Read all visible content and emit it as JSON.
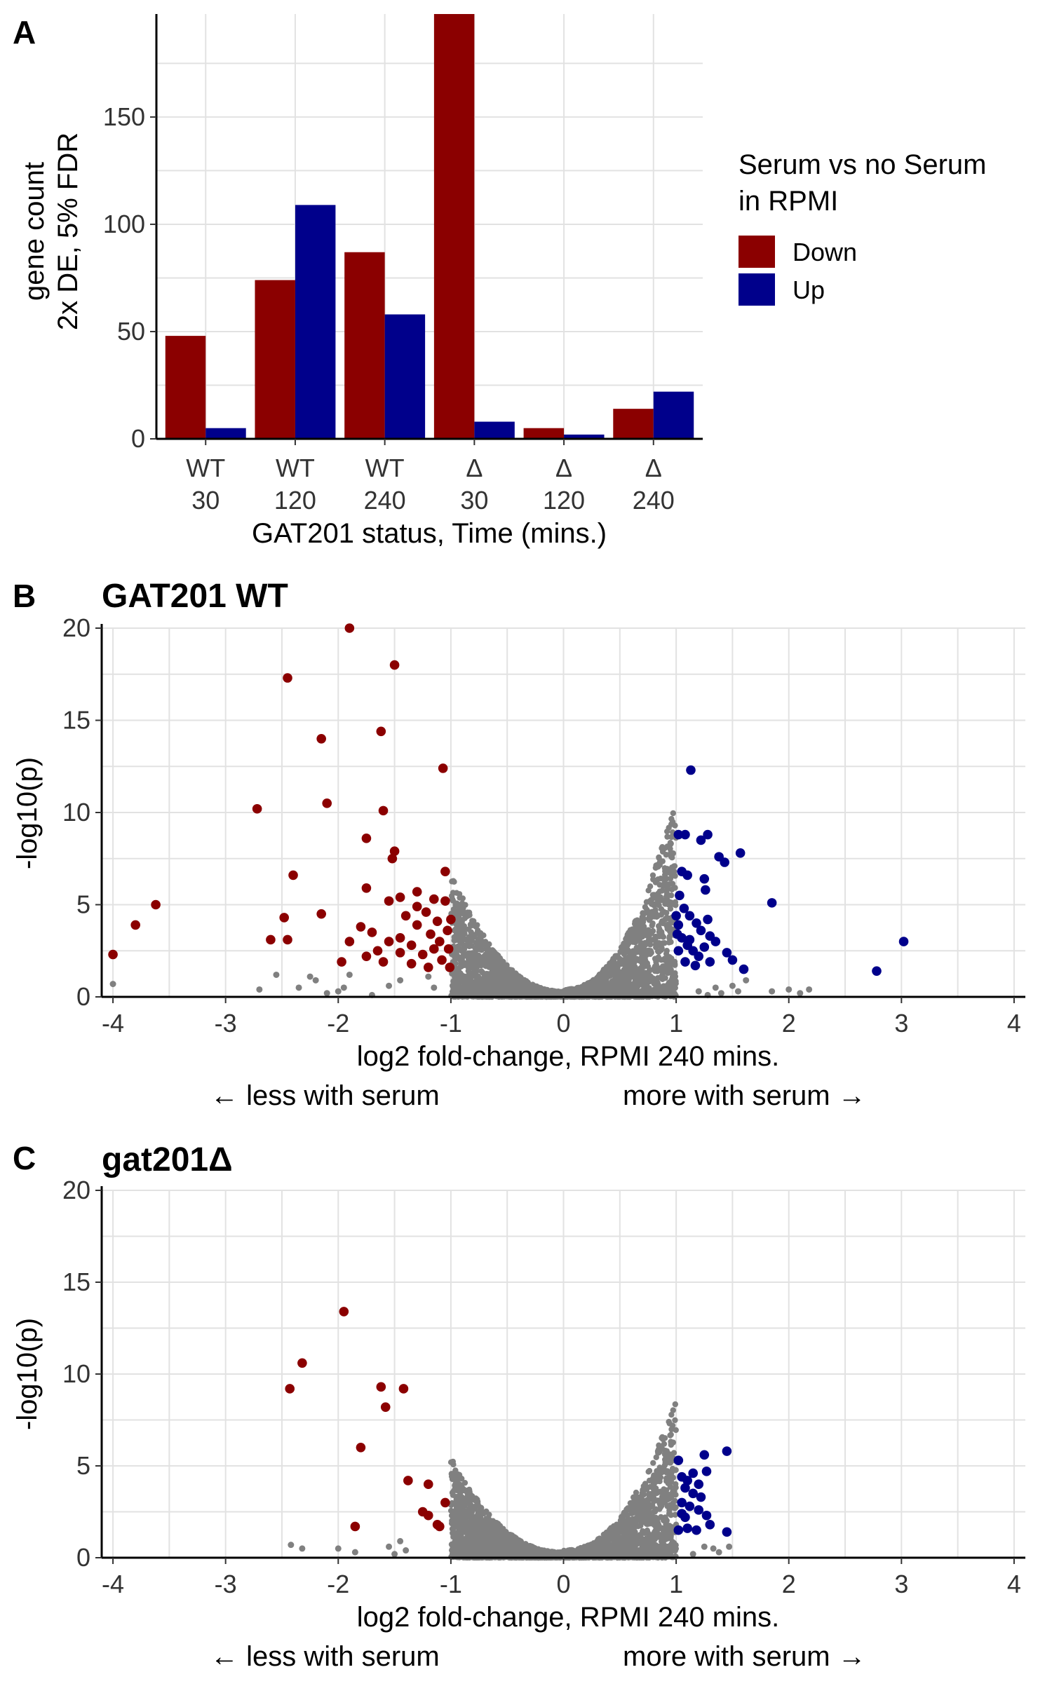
{
  "panels": {
    "a": {
      "letter": "A"
    },
    "b": {
      "letter": "B",
      "title": "GAT201 WT"
    },
    "c": {
      "letter": "C",
      "title": "gat201Δ"
    }
  },
  "colors": {
    "down": "#8B0000",
    "up": "#00008B",
    "ns": "#808080",
    "grid": "#e2e2e2"
  },
  "chart_data": [
    {
      "type": "bar",
      "ylabel_lines": [
        "gene count",
        "2x DE, 5% FDR"
      ],
      "xlabel": "GAT201 status, Time (mins.)",
      "categories": [
        {
          "line1": "WT",
          "line2": "30"
        },
        {
          "line1": "WT",
          "line2": "120"
        },
        {
          "line1": "WT",
          "line2": "240"
        },
        {
          "line1": "Δ",
          "line2": "30"
        },
        {
          "line1": "Δ",
          "line2": "120"
        },
        {
          "line1": "Δ",
          "line2": "240"
        }
      ],
      "series": [
        {
          "name": "Down",
          "values": [
            48,
            74,
            87,
            198,
            5,
            14
          ]
        },
        {
          "name": "Up",
          "values": [
            5,
            109,
            58,
            8,
            2,
            22
          ]
        }
      ],
      "yticks": [
        "0",
        "50",
        "100",
        "150"
      ],
      "ytick_values": [
        0,
        50,
        100,
        150
      ],
      "ylim": [
        0,
        198
      ],
      "legend_title_lines": [
        "Serum vs no Serum",
        "in RPMI"
      ],
      "legend_position": "right",
      "grid": true
    },
    {
      "type": "scatter",
      "title": "GAT201 WT",
      "xlabel": "log2 fold-change, RPMI 240 mins.",
      "xlabel_left": "← less with serum",
      "xlabel_right": "more with serum →",
      "ylabel": "-log10(p)",
      "xlim": [
        -4.1,
        4.1
      ],
      "ylim": [
        0,
        20
      ],
      "xticks": [
        "-4",
        "-3",
        "-2",
        "-1",
        "0",
        "1",
        "2",
        "3",
        "4"
      ],
      "xtick_values": [
        -4,
        -3,
        -2,
        -1,
        0,
        1,
        2,
        3,
        4
      ],
      "yticks": [
        "0",
        "5",
        "10",
        "15",
        "20"
      ],
      "ytick_values": [
        0,
        5,
        10,
        15,
        20
      ],
      "grid": true,
      "down_points": [
        [
          -1.9,
          20.0
        ],
        [
          -1.5,
          18.0
        ],
        [
          -2.45,
          17.3
        ],
        [
          -1.62,
          14.4
        ],
        [
          -2.15,
          14.0
        ],
        [
          -1.07,
          12.4
        ],
        [
          -2.1,
          10.5
        ],
        [
          -1.6,
          10.1
        ],
        [
          -2.72,
          10.2
        ],
        [
          -1.75,
          8.6
        ],
        [
          -1.5,
          7.9
        ],
        [
          -1.52,
          7.5
        ],
        [
          -2.4,
          6.6
        ],
        [
          -1.75,
          5.9
        ],
        [
          -1.05,
          6.8
        ],
        [
          -1.3,
          5.7
        ],
        [
          -1.45,
          5.4
        ],
        [
          -1.55,
          5.2
        ],
        [
          -2.15,
          4.5
        ],
        [
          -2.48,
          4.3
        ],
        [
          -3.62,
          5.0
        ],
        [
          -3.8,
          3.9
        ],
        [
          -4.0,
          2.3
        ],
        [
          -2.6,
          3.1
        ],
        [
          -2.45,
          3.1
        ],
        [
          -1.97,
          1.9
        ],
        [
          -1.8,
          3.8
        ],
        [
          -1.7,
          3.5
        ],
        [
          -1.65,
          2.5
        ],
        [
          -1.55,
          3.0
        ],
        [
          -1.45,
          3.2
        ],
        [
          -1.4,
          4.4
        ],
        [
          -1.35,
          2.8
        ],
        [
          -1.3,
          3.9
        ],
        [
          -1.25,
          2.3
        ],
        [
          -1.22,
          4.6
        ],
        [
          -1.18,
          3.4
        ],
        [
          -1.15,
          2.6
        ],
        [
          -1.12,
          4.1
        ],
        [
          -1.1,
          3.0
        ],
        [
          -1.08,
          2.0
        ],
        [
          -1.05,
          5.2
        ],
        [
          -1.03,
          3.6
        ],
        [
          -1.02,
          2.6
        ],
        [
          -1.01,
          1.6
        ],
        [
          -1.6,
          1.9
        ],
        [
          -1.75,
          2.2
        ],
        [
          -1.35,
          1.8
        ],
        [
          -1.2,
          1.6
        ],
        [
          -1.45,
          2.4
        ],
        [
          -1.9,
          3.0
        ],
        [
          -1.3,
          4.9
        ],
        [
          -1.15,
          5.3
        ],
        [
          -1.0,
          4.2
        ]
      ],
      "up_points": [
        [
          1.13,
          12.3
        ],
        [
          1.02,
          8.8
        ],
        [
          1.08,
          8.8
        ],
        [
          1.22,
          8.5
        ],
        [
          1.28,
          8.8
        ],
        [
          1.38,
          7.6
        ],
        [
          1.43,
          7.3
        ],
        [
          1.57,
          7.8
        ],
        [
          1.05,
          6.8
        ],
        [
          1.1,
          6.6
        ],
        [
          1.25,
          6.4
        ],
        [
          1.26,
          5.8
        ],
        [
          1.85,
          5.1
        ],
        [
          1.03,
          5.5
        ],
        [
          1.07,
          4.8
        ],
        [
          1.12,
          4.4
        ],
        [
          1.18,
          4.0
        ],
        [
          1.22,
          3.6
        ],
        [
          1.3,
          3.3
        ],
        [
          1.35,
          3.0
        ],
        [
          1.02,
          3.9
        ],
        [
          1.05,
          3.2
        ],
        [
          1.1,
          2.8
        ],
        [
          1.15,
          2.5
        ],
        [
          1.2,
          2.2
        ],
        [
          1.25,
          2.7
        ],
        [
          1.45,
          2.4
        ],
        [
          1.6,
          1.5
        ],
        [
          1.02,
          2.5
        ],
        [
          1.08,
          1.9
        ],
        [
          1.17,
          1.7
        ],
        [
          1.3,
          1.9
        ],
        [
          1.5,
          2.0
        ],
        [
          2.78,
          1.4
        ],
        [
          3.02,
          3.0
        ],
        [
          1.0,
          4.4
        ],
        [
          1.01,
          3.4
        ],
        [
          1.28,
          4.2
        ],
        [
          1.12,
          3.1
        ]
      ],
      "ns_points": [
        [
          -4.0,
          0.7
        ],
        [
          -2.7,
          0.4
        ],
        [
          -2.55,
          1.2
        ],
        [
          -2.2,
          0.9
        ],
        [
          -2.1,
          0.2
        ],
        [
          -2.25,
          1.1
        ],
        [
          -2.35,
          0.5
        ],
        [
          -1.95,
          0.5
        ],
        [
          -1.9,
          1.2
        ],
        [
          -2.0,
          0.3
        ],
        [
          -1.55,
          0.6
        ],
        [
          -1.45,
          0.9
        ],
        [
          -1.7,
          0.1
        ],
        [
          -1.15,
          0.5
        ],
        [
          -1.2,
          1.1
        ],
        [
          1.2,
          0.3
        ],
        [
          1.35,
          0.5
        ],
        [
          1.4,
          0.2
        ],
        [
          1.5,
          0.6
        ],
        [
          1.62,
          0.9
        ],
        [
          1.85,
          0.3
        ],
        [
          2.0,
          0.4
        ],
        [
          2.1,
          0.2
        ],
        [
          2.18,
          0.4
        ],
        [
          1.55,
          0.3
        ],
        [
          1.28,
          0.1
        ]
      ],
      "ns_cloud_peak": 10.4
    },
    {
      "type": "scatter",
      "title": "gat201Δ",
      "xlabel": "log2 fold-change, RPMI 240 mins.",
      "xlabel_left": "← less with serum",
      "xlabel_right": "more with serum →",
      "ylabel": "-log10(p)",
      "xlim": [
        -4.1,
        4.1
      ],
      "ylim": [
        0,
        20
      ],
      "xticks": [
        "-4",
        "-3",
        "-2",
        "-1",
        "0",
        "1",
        "2",
        "3",
        "4"
      ],
      "xtick_values": [
        -4,
        -3,
        -2,
        -1,
        0,
        1,
        2,
        3,
        4
      ],
      "yticks": [
        "0",
        "5",
        "10",
        "15",
        "20"
      ],
      "ytick_values": [
        0,
        5,
        10,
        15,
        20
      ],
      "grid": true,
      "down_points": [
        [
          -1.95,
          13.4
        ],
        [
          -2.32,
          10.6
        ],
        [
          -2.43,
          9.2
        ],
        [
          -1.62,
          9.3
        ],
        [
          -1.42,
          9.2
        ],
        [
          -1.58,
          8.2
        ],
        [
          -1.8,
          6.0
        ],
        [
          -1.38,
          4.2
        ],
        [
          -1.2,
          4.0
        ],
        [
          -1.05,
          3.0
        ],
        [
          -1.25,
          2.5
        ],
        [
          -1.12,
          1.8
        ],
        [
          -1.1,
          1.7
        ],
        [
          -1.85,
          1.7
        ],
        [
          -1.2,
          2.3
        ]
      ],
      "up_points": [
        [
          1.45,
          5.8
        ],
        [
          1.25,
          5.6
        ],
        [
          1.02,
          5.3
        ],
        [
          1.27,
          4.7
        ],
        [
          1.15,
          4.6
        ],
        [
          1.05,
          4.4
        ],
        [
          1.1,
          4.2
        ],
        [
          1.2,
          4.0
        ],
        [
          1.08,
          3.8
        ],
        [
          1.15,
          3.5
        ],
        [
          1.22,
          3.3
        ],
        [
          1.05,
          3.0
        ],
        [
          1.12,
          2.8
        ],
        [
          1.2,
          2.6
        ],
        [
          1.27,
          2.3
        ],
        [
          1.05,
          2.4
        ],
        [
          1.02,
          1.5
        ],
        [
          1.1,
          1.6
        ],
        [
          1.18,
          1.5
        ],
        [
          1.3,
          1.8
        ],
        [
          1.45,
          1.4
        ],
        [
          1.08,
          2.2
        ]
      ],
      "ns_points": [
        [
          -2.42,
          0.7
        ],
        [
          -2.32,
          0.5
        ],
        [
          -2.0,
          0.5
        ],
        [
          -1.85,
          0.3
        ],
        [
          -1.55,
          0.6
        ],
        [
          -1.45,
          0.9
        ],
        [
          -1.4,
          0.4
        ],
        [
          -1.5,
          0.2
        ],
        [
          -0.95,
          4.4
        ],
        [
          1.33,
          0.5
        ],
        [
          1.38,
          0.3
        ],
        [
          1.25,
          0.6
        ],
        [
          1.47,
          0.6
        ],
        [
          1.15,
          0.2
        ]
      ],
      "ns_cloud_peak": 8.3
    }
  ]
}
